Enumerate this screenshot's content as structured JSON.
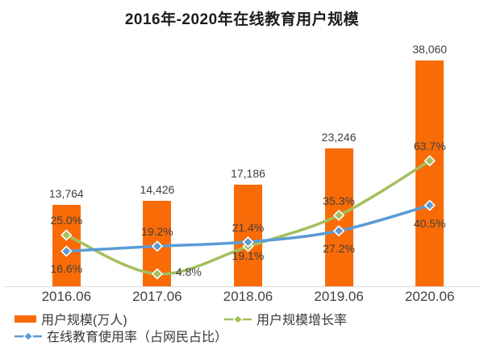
{
  "chart_data": {
    "type": "bar+line",
    "title": "2016年-2020年在线教育用户规模",
    "xlabel": "",
    "ylabel": "",
    "categories": [
      "2016.06",
      "2017.06",
      "2018.06",
      "2019.06",
      "2020.06"
    ],
    "bar_series": {
      "name": "用户规模(万人)",
      "values": [
        13764,
        14426,
        17186,
        23246,
        38060
      ],
      "labels": [
        "13,764",
        "14,426",
        "17,186",
        "23,246",
        "38,060"
      ],
      "color": "#f96b07"
    },
    "line_series": [
      {
        "name": "用户规模增长率",
        "values": [
          25.0,
          4.8,
          19.1,
          35.3,
          63.7
        ],
        "labels": [
          "25.0%",
          "4.8%",
          "19.1%",
          "35.3%",
          "63.7%"
        ],
        "label_pos": [
          "above",
          "right",
          "below-near",
          "above",
          "above"
        ],
        "color": "#a3bf5e"
      },
      {
        "name": "在线教育使用率（占网民占比）",
        "values": [
          16.6,
          19.2,
          21.4,
          27.2,
          40.5
        ],
        "labels": [
          "16.6%",
          "19.2%",
          "21.4%",
          "27.2%",
          "40.5%"
        ],
        "label_pos": [
          "below",
          "above",
          "above",
          "below",
          "below"
        ],
        "color": "#5b9bd5"
      }
    ],
    "axes": {
      "y_axis_visible": false,
      "grid": false,
      "x_labels_visible": true
    },
    "legend_position": "bottom"
  },
  "colors": {
    "label_text": "#404040",
    "title_text": "#1c1c1c",
    "legend_text": "#383838",
    "baseline": "#d9d9d9",
    "marker_outline": "#ffffff"
  }
}
